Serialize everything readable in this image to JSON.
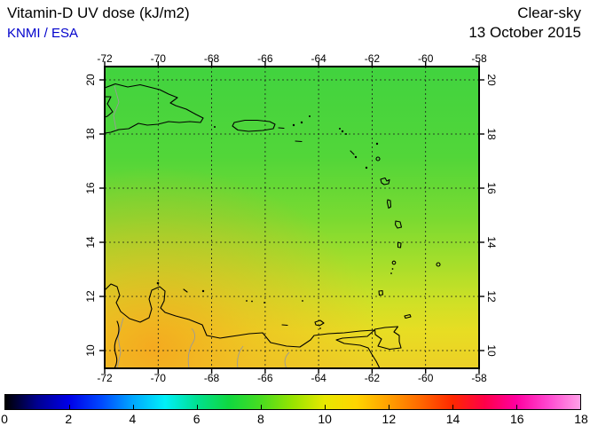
{
  "header": {
    "title": "Vitamin-D UV dose (kJ/m2)",
    "source": {
      "knmi": "KNMI",
      "separator": " / ",
      "esa": "ESA"
    },
    "condition": "Clear-sky",
    "date": "13 October 2015"
  },
  "map": {
    "x_axis": {
      "ticks": [
        "-72",
        "-70",
        "-68",
        "-66",
        "-64",
        "-62",
        "-60",
        "-58"
      ]
    },
    "y_axis": {
      "ticks": [
        "20",
        "18",
        "16",
        "14",
        "12",
        "10"
      ]
    }
  },
  "colorbar": {
    "ticks": [
      "0",
      "2",
      "4",
      "6",
      "8",
      "10",
      "12",
      "14",
      "16",
      "18"
    ],
    "min": 0,
    "max": 18,
    "units": "kJ/m2",
    "gradient": [
      "#000000",
      "#000090",
      "#0000e8",
      "#0048ff",
      "#00a8ff",
      "#00f0f8",
      "#00e090",
      "#10d840",
      "#48dc20",
      "#98e400",
      "#e8e800",
      "#ffd400",
      "#ffa000",
      "#ff6800",
      "#ff2800",
      "#ff0048",
      "#ff00a0",
      "#ff48d0",
      "#ffa0e8"
    ]
  },
  "chart_data": {
    "type": "heatmap",
    "title": "Vitamin-D UV dose (kJ/m2)",
    "source": "KNMI / ESA",
    "condition": "Clear-sky",
    "date": "13 October 2015",
    "region": "Caribbean Sea with Hispaniola, Puerto Rico, Lesser Antilles and Venezuelan coast",
    "lon_range": [
      -72,
      -58
    ],
    "lat_range": [
      10,
      20
    ],
    "grid_step_deg": 2,
    "colorbar": {
      "min": 0,
      "max": 18,
      "tick_step": 2,
      "units": "kJ/m2"
    },
    "approx_dose_by_lat": {
      "lat20": 7.5,
      "lat18": 7.8,
      "lat16": 8.3,
      "lat14": 9.0,
      "lat12": 9.8,
      "lat10": 10.5
    },
    "max_region": "southwest corner near Venezuelan coast, ~11 kJ/m2 (orange)",
    "min_region": "northern edge near Hispaniola, ~7.5 kJ/m2 (green)"
  }
}
